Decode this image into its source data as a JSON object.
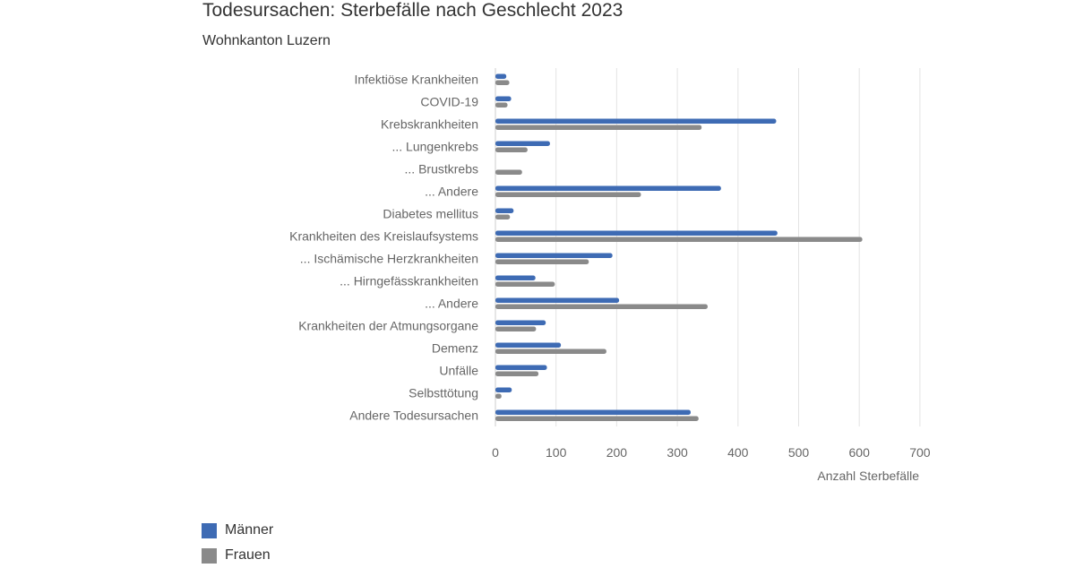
{
  "title": "Todesursachen: Sterbefälle nach Geschlecht 2023",
  "subtitle": "Wohnkanton Luzern",
  "colors": {
    "maenner": "#3e6bb4",
    "frauen": "#8a8a8a",
    "grid": "#e3e3e3"
  },
  "legend": {
    "items": [
      {
        "label": "Männer",
        "color": "#3e6bb4"
      },
      {
        "label": "Frauen",
        "color": "#8a8a8a"
      }
    ]
  },
  "chart_data": {
    "type": "bar",
    "orientation": "horizontal",
    "title": "Todesursachen: Sterbefälle nach Geschlecht 2023",
    "subtitle": "Wohnkanton Luzern",
    "xlabel": "Anzahl Sterbefälle",
    "ylabel": "",
    "xlim": [
      0,
      700
    ],
    "xticks": [
      0,
      100,
      200,
      300,
      400,
      500,
      600,
      700
    ],
    "grid": true,
    "legend_position": "bottom-left",
    "categories": [
      "Infektiöse Krankheiten",
      "COVID-19",
      "Krebskrankheiten",
      "... Lungenkrebs",
      "... Brustkrebs",
      "... Andere",
      "Diabetes mellitus",
      "Krankheiten des Kreislaufsystems",
      "... Ischämische Herzkrankheiten",
      "... Hirngefässkrankheiten",
      "... Andere",
      "Krankheiten der Atmungsorgane",
      "Demenz",
      "Unfälle",
      "Selbsttötung",
      "Andere Todesursachen"
    ],
    "series": [
      {
        "name": "Männer",
        "values": [
          18,
          26,
          463,
          90,
          0,
          372,
          30,
          465,
          193,
          66,
          204,
          83,
          108,
          85,
          27,
          322
        ]
      },
      {
        "name": "Frauen",
        "values": [
          23,
          20,
          340,
          53,
          44,
          240,
          24,
          605,
          154,
          98,
          350,
          67,
          183,
          71,
          10,
          335
        ]
      }
    ]
  }
}
